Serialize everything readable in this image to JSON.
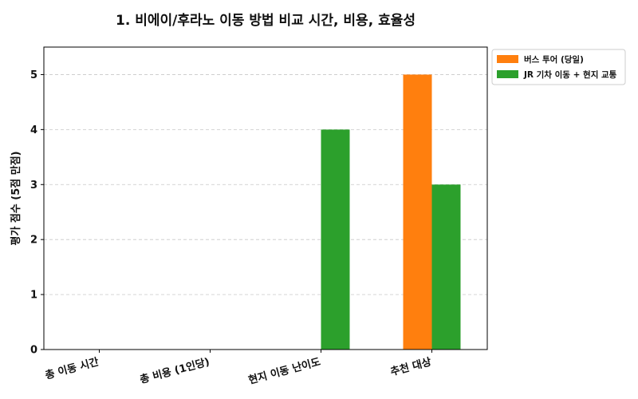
{
  "chart_data": {
    "type": "bar",
    "title": "1. 비에이/후라노 이동 방법 비교 시간, 비용, 효율성",
    "xlabel": "",
    "ylabel": "평가 점수 (5점 만점)",
    "ylim": [
      0,
      5.5
    ],
    "yticks": [
      0,
      1,
      2,
      3,
      4,
      5
    ],
    "categories": [
      "총 이동 시간",
      "총 비용 (1인당)",
      "현지 이동 난이도",
      "추천 대상"
    ],
    "series": [
      {
        "name": "버스 투어 (당일)",
        "color": "#ff7f0e",
        "values": [
          0,
          0,
          0,
          5
        ]
      },
      {
        "name": "JR 기차 이동 + 현지 교통",
        "color": "#2ca02c",
        "values": [
          0,
          0,
          4,
          3
        ]
      }
    ],
    "grid": "y-dashed",
    "legend_position": "outside-top-right"
  }
}
